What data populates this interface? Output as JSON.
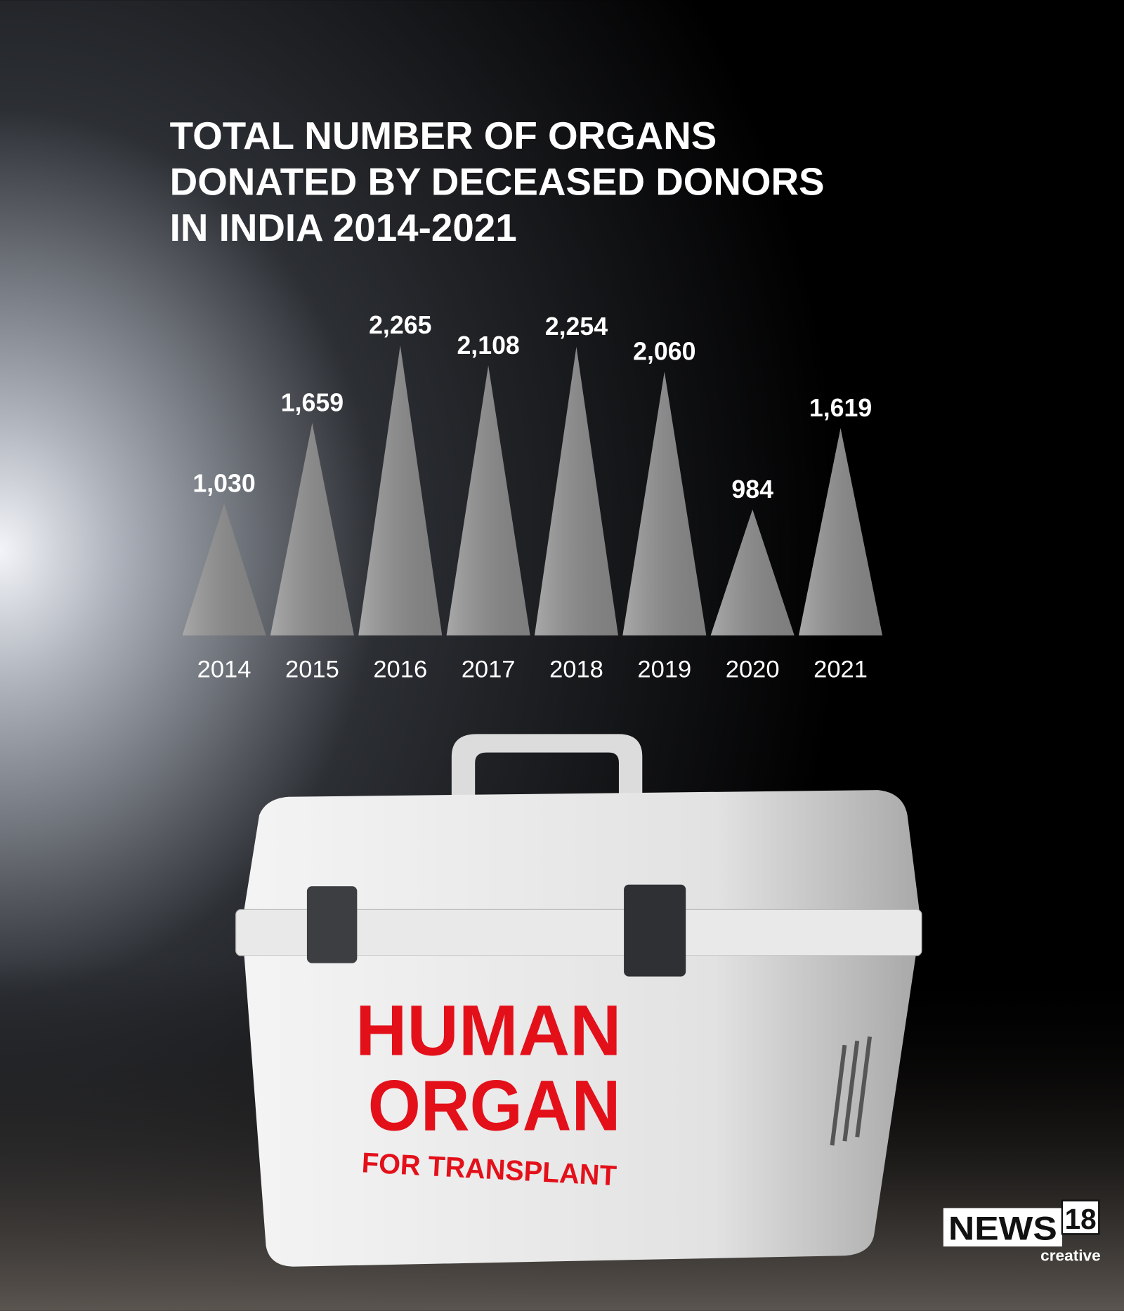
{
  "chart_data": {
    "type": "triangle",
    "title": [
      "TOTAL NUMBER OF ORGANS",
      "DONATED BY DECEASED DONORS",
      "IN INDIA 2014-2021"
    ],
    "categories": [
      "2014",
      "2015",
      "2016",
      "2017",
      "2018",
      "2019",
      "2020",
      "2021"
    ],
    "values": [
      1030,
      1659,
      2265,
      2108,
      2254,
      2060,
      984,
      1619
    ],
    "value_labels": [
      "1,030",
      "1,659",
      "2,265",
      "2,108",
      "2,254",
      "2,060",
      "984",
      "1,619"
    ],
    "color": "#8c8c8c",
    "ylim": [
      0,
      2500
    ]
  },
  "illustration": {
    "label_lines": [
      "HUMAN",
      "ORGAN"
    ],
    "sub_label": "FOR TRANSPLANT"
  },
  "logo": {
    "name": "NEWS",
    "number": "18",
    "tagline": "creative"
  }
}
